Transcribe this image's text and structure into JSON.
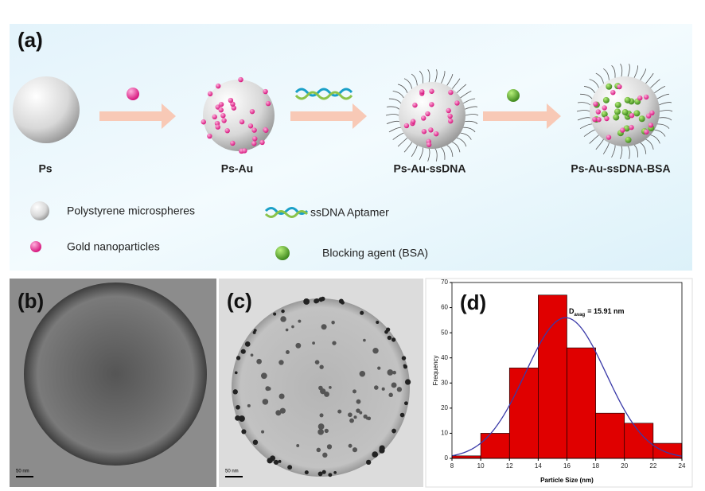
{
  "panel_a": {
    "label": "(a)",
    "stages": [
      "Ps",
      "Ps-Au",
      "Ps-Au-ssDNA",
      "Ps-Au-ssDNA-BSA"
    ],
    "legend": [
      "Polystyrene microspheres",
      "ssDNA Aptamer",
      "Gold nanoparticles",
      "Blocking agent (BSA)"
    ]
  },
  "panel_b": {
    "label": "(b)",
    "scale_bar": "50 nm"
  },
  "panel_c": {
    "label": "(c)",
    "scale_bar": "50 nm"
  },
  "chart_data": {
    "type": "histogram",
    "label": "(d)",
    "x_label": "Particle Size (nm)",
    "y_label": "Frequency",
    "annotation": {
      "symbol": "D",
      "subscript": "avag",
      "text": "= 15.91 nm"
    },
    "bins": [
      8,
      10,
      12,
      14,
      16,
      18,
      20,
      22,
      24
    ],
    "counts": [
      1,
      10,
      36,
      65,
      44,
      18,
      14,
      6
    ],
    "color": "#e00000",
    "fit": {
      "color": "#3a3aa8",
      "mean": 15.91,
      "sd": 2.8,
      "peak": 56
    },
    "xlim": [
      8,
      24
    ],
    "xticks": [
      8,
      10,
      12,
      14,
      16,
      18,
      20,
      22,
      24
    ],
    "ylim": [
      0,
      70
    ],
    "yticks": [
      0,
      10,
      20,
      30,
      40,
      50,
      60,
      70
    ]
  }
}
